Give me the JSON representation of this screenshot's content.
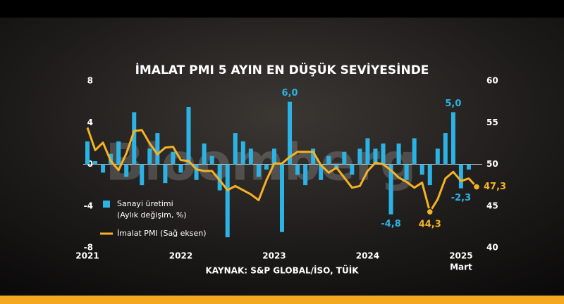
{
  "chart_data": {
    "type": "bar-line",
    "title": "İMALAT PMI 5 AYIN EN DÜŞÜK SEVİYESİNDE",
    "source": "KAYNAK: S&P GLOBAL/İSO, TÜİK",
    "watermark": "Bloomberg",
    "categories": [
      "2021",
      null,
      null,
      null,
      null,
      null,
      null,
      null,
      null,
      null,
      null,
      null,
      "2022",
      null,
      null,
      null,
      null,
      null,
      null,
      null,
      null,
      null,
      null,
      null,
      "2023",
      null,
      null,
      null,
      null,
      null,
      null,
      null,
      null,
      null,
      null,
      null,
      "2024",
      null,
      null,
      null,
      null,
      null,
      null,
      null,
      null,
      null,
      null,
      null,
      "2025",
      null,
      null
    ],
    "last_category_note": "Mart",
    "ylim": [
      -8,
      8
    ],
    "yticks": [
      8,
      4,
      0,
      -4,
      -8
    ],
    "y2lim": [
      40,
      60
    ],
    "y2ticks": [
      60,
      55,
      50,
      45,
      40
    ],
    "series": [
      {
        "name": "Sanayi üretimi",
        "legend_note": "(Aylık değişim, %)",
        "type": "bar",
        "color": "#2bb3e6",
        "values": [
          2.2,
          0.3,
          -0.8,
          1.0,
          2.2,
          -1.2,
          5.0,
          -2.0,
          1.5,
          3.0,
          -1.8,
          1.2,
          -0.8,
          5.5,
          -1.5,
          2.0,
          0.8,
          -2.5,
          -7.0,
          3.0,
          2.2,
          1.5,
          -1.2,
          -0.5,
          1.5,
          -6.5,
          6.0,
          -1.0,
          -2.0,
          1.5,
          -1.5,
          0.8,
          -0.5,
          1.2,
          -1.0,
          1.5,
          2.5,
          1.5,
          2.0,
          -4.8,
          2.0,
          -1.5,
          2.5,
          -1.0,
          -2.0,
          1.5,
          3.0,
          5.0,
          -2.3,
          -0.5,
          null
        ],
        "value_labels": [
          null,
          null,
          null,
          null,
          null,
          null,
          null,
          null,
          null,
          null,
          null,
          null,
          null,
          null,
          null,
          null,
          null,
          null,
          null,
          null,
          null,
          null,
          null,
          null,
          null,
          null,
          "6,0",
          null,
          null,
          null,
          null,
          null,
          null,
          null,
          null,
          null,
          null,
          null,
          null,
          "-4,8",
          null,
          null,
          null,
          null,
          null,
          null,
          null,
          "5,0",
          "-2,3",
          null,
          null
        ]
      },
      {
        "name": "İmalat PMI (Sağ eksen)",
        "type": "line",
        "axis": "y2",
        "color": "#f5b324",
        "values": [
          54.4,
          51.7,
          52.6,
          50.4,
          49.3,
          51.3,
          54.0,
          54.1,
          52.5,
          51.2,
          52.0,
          52.1,
          50.5,
          50.4,
          49.4,
          49.2,
          49.2,
          48.1,
          46.9,
          47.4,
          46.9,
          46.4,
          45.7,
          48.1,
          50.1,
          50.1,
          50.9,
          51.5,
          51.5,
          51.5,
          49.9,
          49.0,
          49.6,
          48.4,
          47.2,
          47.4,
          49.2,
          50.2,
          50.0,
          49.3,
          48.4,
          47.9,
          47.2,
          47.8,
          44.3,
          45.8,
          48.3,
          49.1,
          48.0,
          48.3,
          47.3
        ],
        "value_labels": [
          null,
          null,
          null,
          null,
          null,
          null,
          null,
          null,
          null,
          null,
          null,
          null,
          null,
          null,
          null,
          null,
          null,
          null,
          null,
          null,
          null,
          null,
          null,
          null,
          null,
          null,
          null,
          null,
          null,
          null,
          null,
          null,
          null,
          null,
          null,
          null,
          null,
          null,
          null,
          null,
          null,
          null,
          null,
          null,
          "44,3",
          null,
          null,
          null,
          null,
          null,
          "47,3"
        ]
      }
    ]
  }
}
